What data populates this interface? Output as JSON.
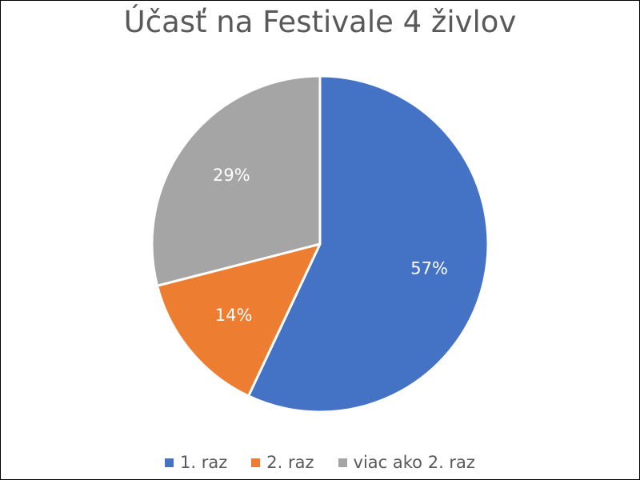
{
  "chart_data": {
    "type": "pie",
    "title": "Účasť na Festivale 4 živlov",
    "categories": [
      "1. raz",
      "2. raz",
      "viac ako 2. raz"
    ],
    "values": [
      57,
      14,
      29
    ],
    "labels": [
      "57%",
      "14%",
      "29%"
    ],
    "colors": [
      "#4472C4",
      "#ED7D31",
      "#A5A5A5"
    ],
    "legend_position": "bottom"
  }
}
